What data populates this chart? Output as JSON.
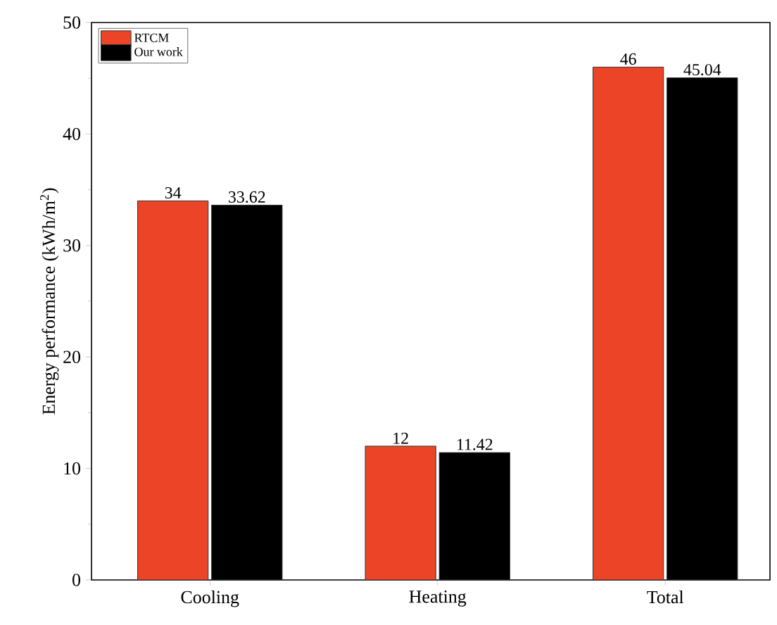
{
  "chart_data": {
    "type": "bar",
    "ylabel": "Energy performance (kWh/m$^{2}$)",
    "categories": [
      "Cooling",
      "Heating",
      "Total"
    ],
    "series": [
      {
        "name": "RTCM",
        "color": "#ec4427",
        "values": [
          34,
          12,
          46
        ]
      },
      {
        "name": "Our work",
        "color": "#000000",
        "values": [
          33.62,
          11.42,
          45.04
        ]
      }
    ],
    "ylim": [
      0,
      50
    ],
    "yticks": [
      0,
      10,
      20,
      30,
      40,
      50
    ],
    "data_labels": true,
    "legend": "top left"
  }
}
